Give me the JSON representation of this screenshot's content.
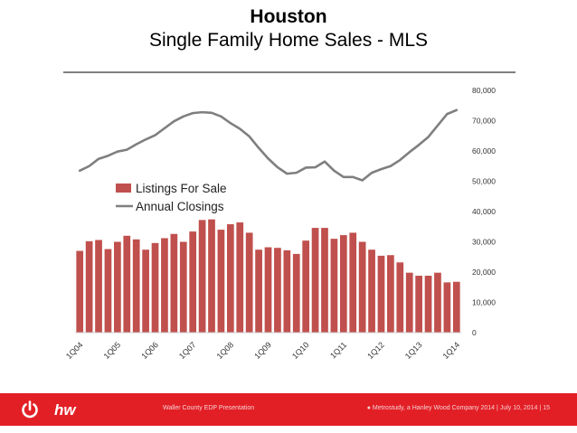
{
  "header": {
    "title": "Houston",
    "subtitle": "Single Family Home Sales - MLS"
  },
  "footer": {
    "presentation": "Waller County EDP Presentation",
    "credit": "Metrostudy, a Hanley Wood Company 2014",
    "date": "July 10, 2014",
    "page": "15",
    "logo_text": "hw"
  },
  "colors": {
    "bar": "#c0504d",
    "line": "#7f7f7f",
    "footer": "#e31f26"
  },
  "chart_data": {
    "type": "bar+line",
    "title": "",
    "xlabel": "",
    "ylabel": "",
    "ylim": [
      0,
      80000
    ],
    "y_ticks": [
      "0",
      "10,000",
      "20,000",
      "30,000",
      "40,000",
      "50,000",
      "60,000",
      "70,000",
      "80,000"
    ],
    "y_axis_side": "right",
    "x_tick_labels": [
      "1Q04",
      "1Q05",
      "1Q06",
      "1Q07",
      "1Q08",
      "1Q09",
      "1Q10",
      "1Q11",
      "1Q12",
      "1Q13",
      "1Q14"
    ],
    "categories": [
      "1Q04",
      "2Q04",
      "3Q04",
      "4Q04",
      "1Q05",
      "2Q05",
      "3Q05",
      "4Q05",
      "1Q06",
      "2Q06",
      "3Q06",
      "4Q06",
      "1Q07",
      "2Q07",
      "3Q07",
      "4Q07",
      "1Q08",
      "2Q08",
      "3Q08",
      "4Q08",
      "1Q09",
      "2Q09",
      "3Q09",
      "4Q09",
      "1Q10",
      "2Q10",
      "3Q10",
      "4Q10",
      "1Q11",
      "2Q11",
      "3Q11",
      "4Q11",
      "1Q12",
      "2Q12",
      "3Q12",
      "4Q12",
      "1Q13",
      "2Q13",
      "3Q13",
      "4Q13",
      "1Q14"
    ],
    "legend_position": "middle-left",
    "series": [
      {
        "name": "Listings For Sale",
        "type": "bar",
        "values": [
          27000,
          30200,
          30600,
          27600,
          30000,
          32000,
          30800,
          27400,
          29600,
          31200,
          32600,
          30000,
          33400,
          37200,
          37400,
          34000,
          35800,
          36400,
          33000,
          27400,
          28200,
          28000,
          27200,
          26000,
          30400,
          34600,
          34600,
          31000,
          32200,
          33000,
          30000,
          27400,
          25400,
          25600,
          23200,
          19800,
          18800,
          18800,
          19800,
          16600,
          16800
        ]
      },
      {
        "name": "Annual Closings",
        "type": "line",
        "values": [
          53500,
          55000,
          57400,
          58400,
          59800,
          60400,
          62200,
          63800,
          65200,
          67500,
          69800,
          71400,
          72500,
          72800,
          72600,
          71400,
          69200,
          67300,
          64800,
          61000,
          57500,
          54600,
          52500,
          52800,
          54500,
          54600,
          56500,
          53500,
          51400,
          51400,
          50300,
          52800,
          54000,
          55000,
          57000,
          59600,
          62000,
          64600,
          68400,
          72200,
          73500
        ]
      }
    ]
  }
}
